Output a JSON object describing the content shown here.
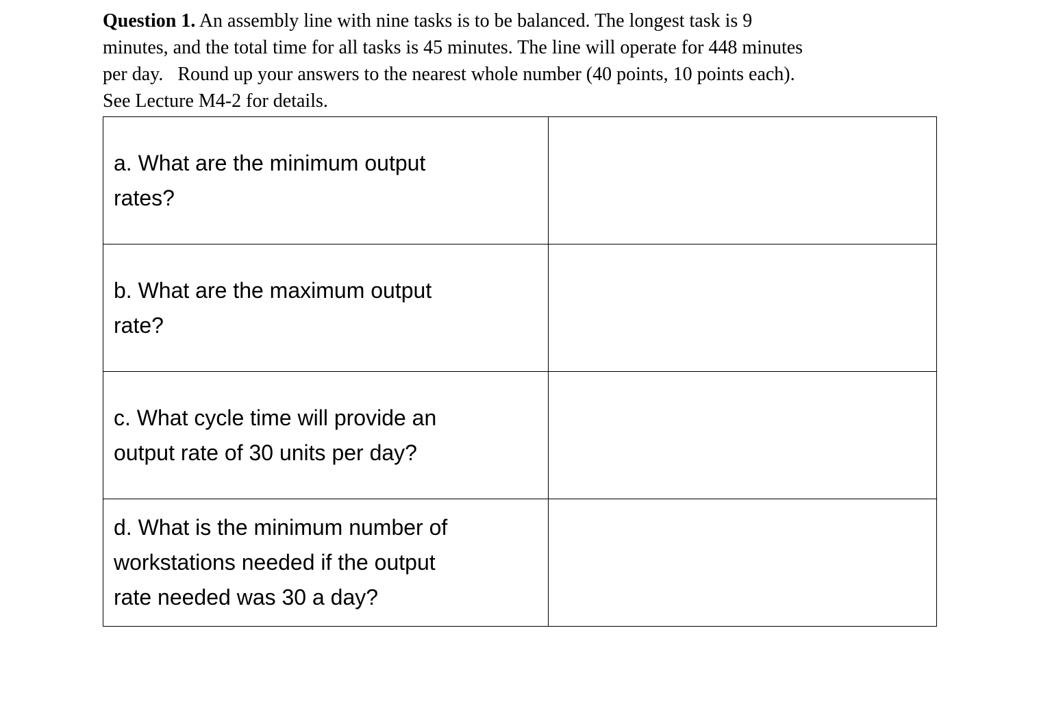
{
  "question": {
    "label": "Question 1.",
    "lines": [
      " An assembly line with nine tasks is to be balanced. The longest task is 9",
      "minutes, and the total time for all tasks is 45 minutes. The line will operate for 448 minutes",
      "per day.   Round up your answers to the nearest whole number (40 points, 10 points each).",
      "See Lecture M4-2 for details."
    ]
  },
  "rows": [
    {
      "lines": [
        "a. What are the minimum output",
        "rates?"
      ],
      "answer": ""
    },
    {
      "lines": [
        "b. What are the maximum output",
        "rate?"
      ],
      "answer": ""
    },
    {
      "lines": [
        "c. What cycle time will provide an",
        "output rate of 30 units per day?"
      ],
      "answer": ""
    },
    {
      "lines": [
        "d. What is the minimum number of",
        "workstations needed if the output",
        "rate needed was 30 a day?"
      ],
      "answer": ""
    }
  ]
}
